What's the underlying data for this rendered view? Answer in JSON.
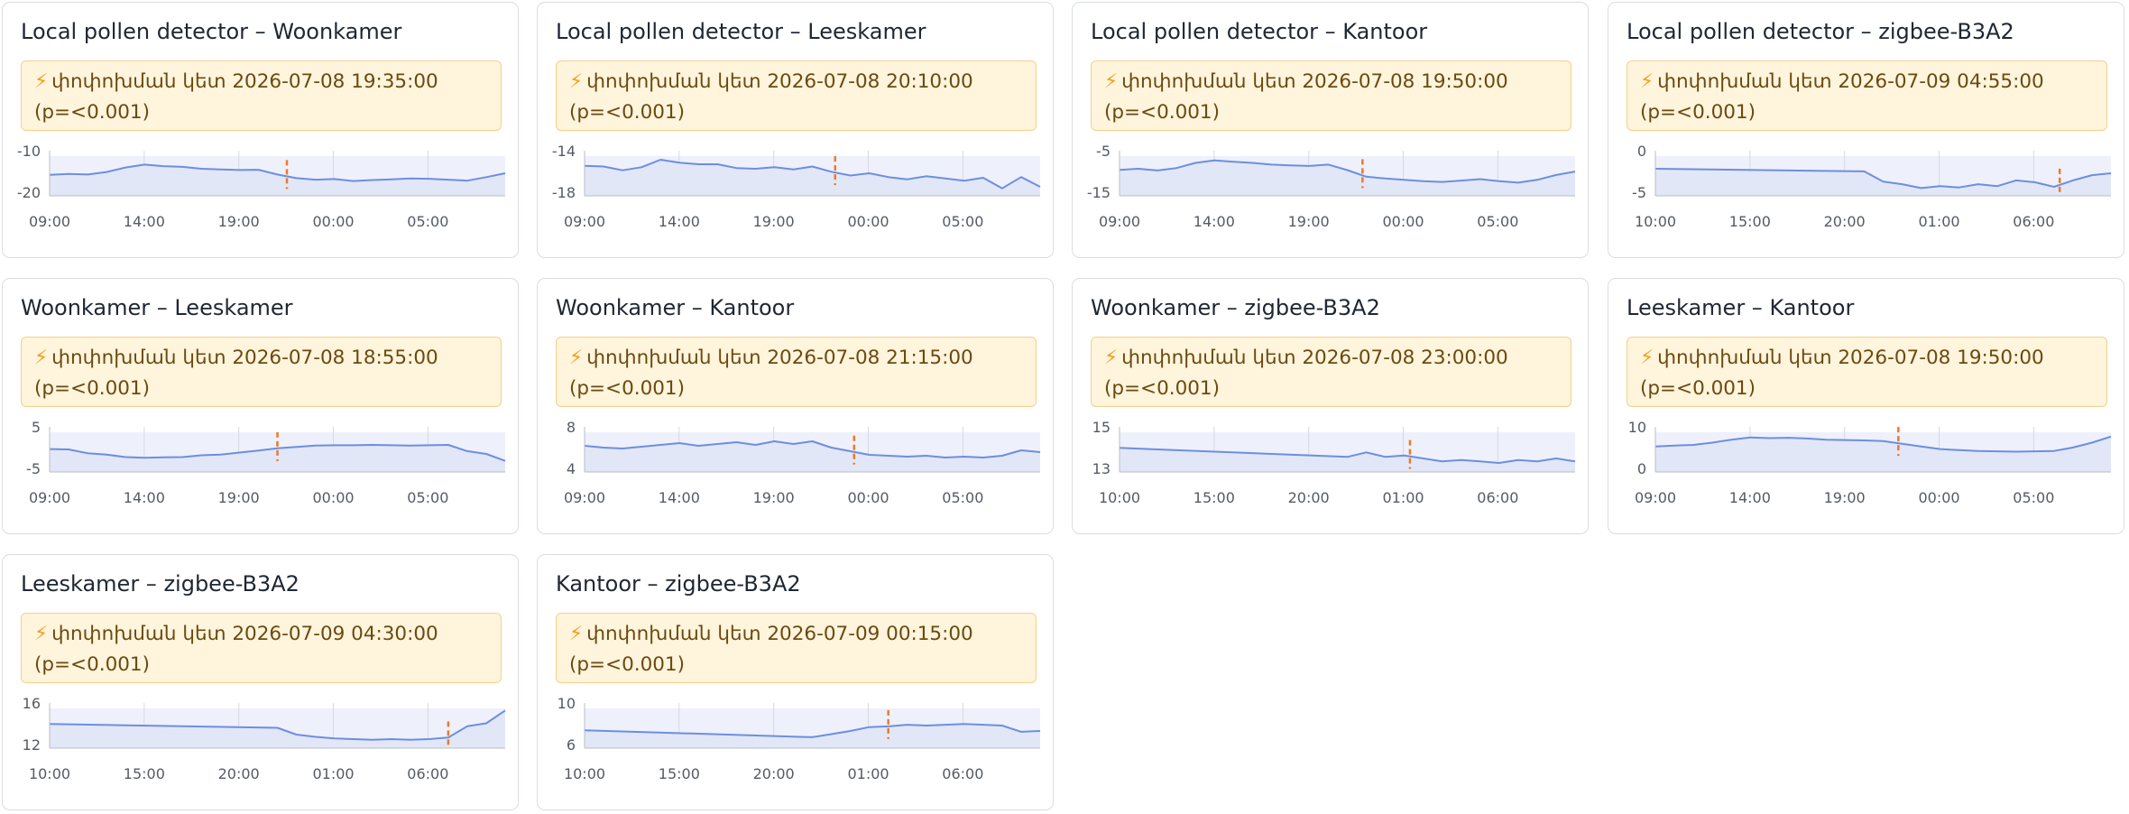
{
  "colors": {
    "line": "#6d8ee0",
    "fill": "#e2e7f8",
    "changepoint": "#f07828",
    "banner_bg": "#fff4dc",
    "banner_border": "#f5d08a",
    "grid": "#d6d9de"
  },
  "banner_icon": "lightning-icon",
  "cards": [
    {
      "title": "Local pollen detector – Woonkamer",
      "banner": {
        "label": "փոփոխման կետ",
        "time": "2026-07-08 19:35:00",
        "p": "(p=⁠<0.001)"
      },
      "chart_data": {
        "type": "area",
        "x_ticks": [
          "09:00",
          "14:00",
          "19:00",
          "00:00",
          "05:00"
        ],
        "y_ticks": [
          "-10",
          "-20"
        ],
        "ylim": [
          -22,
          -8
        ],
        "x": [
          0,
          1,
          2,
          3,
          4,
          5,
          6,
          7,
          8,
          9,
          10,
          11,
          12,
          13,
          14,
          15,
          16,
          17,
          18,
          19,
          20,
          21,
          22,
          23,
          24
        ],
        "values": [
          -15.5,
          -15.2,
          -15.4,
          -14.6,
          -13.2,
          -12.3,
          -12.8,
          -13.0,
          -13.6,
          -13.8,
          -14.0,
          -13.9,
          -15.4,
          -16.5,
          -17.0,
          -16.8,
          -17.4,
          -17.1,
          -16.9,
          -16.6,
          -16.7,
          -17.0,
          -17.3,
          -16.2,
          -15.0
        ],
        "changepoint_index": 12.5
      }
    },
    {
      "title": "Local pollen detector – Leeskamer",
      "banner": {
        "label": "փոփոխման կետ",
        "time": "2026-07-08 20:10:00",
        "p": "(p=⁠<0.001)"
      },
      "chart_data": {
        "type": "area",
        "x_ticks": [
          "09:00",
          "14:00",
          "19:00",
          "00:00",
          "05:00"
        ],
        "y_ticks": [
          "-14",
          "-18"
        ],
        "ylim": [
          -19,
          -13
        ],
        "x": [
          0,
          1,
          2,
          3,
          4,
          5,
          6,
          7,
          8,
          9,
          10,
          11,
          12,
          13,
          14,
          15,
          16,
          17,
          18,
          19,
          20,
          21,
          22,
          23,
          24
        ],
        "values": [
          -15.0,
          -15.1,
          -15.6,
          -15.2,
          -14.2,
          -14.6,
          -14.8,
          -14.8,
          -15.3,
          -15.4,
          -15.2,
          -15.5,
          -15.1,
          -15.8,
          -16.3,
          -16.0,
          -16.5,
          -16.8,
          -16.4,
          -16.7,
          -17.0,
          -16.6,
          -18.0,
          -16.5,
          -17.8
        ],
        "changepoint_index": 13.2
      }
    },
    {
      "title": "Local pollen detector – Kantoor",
      "banner": {
        "label": "փոփոխման կետ",
        "time": "2026-07-08 19:50:00",
        "p": "(p=⁠<0.001)"
      },
      "chart_data": {
        "type": "area",
        "x_ticks": [
          "09:00",
          "14:00",
          "19:00",
          "00:00",
          "05:00"
        ],
        "y_ticks": [
          "-5",
          "-15"
        ],
        "ylim": [
          -16,
          -3
        ],
        "x": [
          0,
          1,
          2,
          3,
          4,
          5,
          6,
          7,
          8,
          9,
          10,
          11,
          12,
          13,
          14,
          15,
          16,
          17,
          18,
          19,
          20,
          21,
          22,
          23,
          24
        ],
        "values": [
          -8.5,
          -8.2,
          -8.7,
          -8.0,
          -6.5,
          -5.8,
          -6.2,
          -6.5,
          -7.0,
          -7.2,
          -7.4,
          -7.0,
          -8.6,
          -10.5,
          -11.0,
          -11.4,
          -11.8,
          -12.0,
          -11.6,
          -11.2,
          -11.8,
          -12.2,
          -11.4,
          -10.0,
          -9.0
        ],
        "changepoint_index": 12.8
      }
    },
    {
      "title": "Local pollen detector – zigbee-B3A2",
      "banner": {
        "label": "փոփոխման կետ",
        "time": "2026-07-09 04:55:00",
        "p": "(p=⁠<0.001)"
      },
      "chart_data": {
        "type": "area",
        "x_ticks": [
          "10:00",
          "15:00",
          "20:00",
          "01:00",
          "06:00"
        ],
        "y_ticks": [
          "0",
          "-5"
        ],
        "ylim": [
          -6,
          1
        ],
        "x": [
          0,
          11,
          12,
          13,
          14,
          15,
          16,
          17,
          18,
          19,
          20,
          21,
          22,
          23,
          24
        ],
        "values": [
          -1.8,
          -2.2,
          -3.8,
          -4.2,
          -4.8,
          -4.5,
          -4.7,
          -4.2,
          -4.5,
          -3.6,
          -3.9,
          -4.6,
          -3.6,
          -2.8,
          -2.5
        ],
        "changepoint_index": 21.3
      }
    },
    {
      "title": "Woonkamer – Leeskamer",
      "banner": {
        "label": "փոփոխման կետ",
        "time": "2026-07-08 18:55:00",
        "p": "(p=⁠<0.001)"
      },
      "chart_data": {
        "type": "area",
        "x_ticks": [
          "09:00",
          "14:00",
          "19:00",
          "00:00",
          "05:00"
        ],
        "y_ticks": [
          "5",
          "-5"
        ],
        "ylim": [
          -6,
          7
        ],
        "x": [
          0,
          1,
          2,
          3,
          4,
          5,
          6,
          7,
          8,
          9,
          10,
          11,
          12,
          13,
          14,
          15,
          16,
          17,
          18,
          19,
          20,
          21,
          22,
          23,
          24
        ],
        "values": [
          0.6,
          0.5,
          -0.6,
          -1.0,
          -1.7,
          -1.9,
          -1.8,
          -1.7,
          -1.2,
          -1.0,
          -0.4,
          0.2,
          0.8,
          1.2,
          1.6,
          1.7,
          1.7,
          1.8,
          1.7,
          1.6,
          1.7,
          1.8,
          0.0,
          -0.8,
          -2.8
        ],
        "changepoint_index": 12.0
      }
    },
    {
      "title": "Woonkamer – Kantoor",
      "banner": {
        "label": "փոփոխման կետ",
        "time": "2026-07-08 21:15:00",
        "p": "(p=⁠<0.001)"
      },
      "chart_data": {
        "type": "area",
        "x_ticks": [
          "09:00",
          "14:00",
          "19:00",
          "00:00",
          "05:00"
        ],
        "y_ticks": [
          "8",
          "4"
        ],
        "ylim": [
          3.5,
          8.5
        ],
        "x": [
          0,
          1,
          2,
          3,
          4,
          5,
          6,
          7,
          8,
          9,
          10,
          11,
          12,
          13,
          14,
          15,
          16,
          17,
          18,
          19,
          20,
          21,
          22,
          23,
          24
        ],
        "values": [
          6.4,
          6.2,
          6.1,
          6.3,
          6.5,
          6.7,
          6.4,
          6.6,
          6.8,
          6.5,
          6.9,
          6.6,
          6.9,
          6.2,
          5.8,
          5.4,
          5.3,
          5.2,
          5.3,
          5.1,
          5.2,
          5.1,
          5.3,
          5.9,
          5.7
        ],
        "changepoint_index": 14.2
      }
    },
    {
      "title": "Woonkamer – zigbee-B3A2",
      "banner": {
        "label": "փոփոխման կետ",
        "time": "2026-07-08 23:00:00",
        "p": "(p=⁠<0.001)"
      },
      "chart_data": {
        "type": "area",
        "x_ticks": [
          "10:00",
          "15:00",
          "20:00",
          "01:00",
          "06:00"
        ],
        "y_ticks": [
          "15",
          "13"
        ],
        "ylim": [
          12.6,
          15.6
        ],
        "x": [
          0,
          12,
          13,
          14,
          15,
          16,
          17,
          18,
          19,
          20,
          21,
          22,
          23,
          24
        ],
        "values": [
          14.2,
          13.6,
          13.9,
          13.6,
          13.7,
          13.5,
          13.3,
          13.4,
          13.3,
          13.2,
          13.4,
          13.3,
          13.5,
          13.3
        ],
        "changepoint_index": 15.3
      }
    },
    {
      "title": "Leeskamer – Kantoor",
      "banner": {
        "label": "փոփոխման կետ",
        "time": "2026-07-08 19:50:00",
        "p": "(p=⁠<0.001)"
      },
      "chart_data": {
        "type": "area",
        "x_ticks": [
          "09:00",
          "14:00",
          "19:00",
          "00:00",
          "05:00"
        ],
        "y_ticks": [
          "10",
          "0"
        ],
        "ylim": [
          -1,
          11
        ],
        "x": [
          0,
          1,
          2,
          3,
          4,
          5,
          6,
          7,
          8,
          9,
          10,
          11,
          12,
          13,
          14,
          15,
          16,
          17,
          18,
          19,
          20,
          21,
          22,
          23,
          24
        ],
        "values": [
          5.8,
          6.0,
          6.2,
          6.8,
          7.6,
          8.2,
          8.0,
          8.1,
          7.9,
          7.6,
          7.5,
          7.4,
          7.2,
          6.5,
          5.8,
          5.1,
          4.8,
          4.6,
          4.5,
          4.4,
          4.5,
          4.6,
          5.5,
          6.8,
          8.4
        ],
        "changepoint_index": 12.8
      }
    },
    {
      "title": "Leeskamer – zigbee-B3A2",
      "banner": {
        "label": "փոփոխման կետ",
        "time": "2026-07-09 04:30:00",
        "p": "(p=⁠<0.001)"
      },
      "chart_data": {
        "type": "area",
        "x_ticks": [
          "10:00",
          "15:00",
          "20:00",
          "01:00",
          "06:00"
        ],
        "y_ticks": [
          "16",
          "12"
        ],
        "ylim": [
          11,
          17
        ],
        "x": [
          0,
          12,
          13,
          14,
          15,
          16,
          17,
          18,
          19,
          20,
          21,
          22,
          23,
          24
        ],
        "values": [
          14.2,
          13.7,
          12.8,
          12.5,
          12.3,
          12.2,
          12.1,
          12.2,
          12.1,
          12.2,
          12.4,
          13.9,
          14.3,
          16.0
        ],
        "changepoint_index": 21.0
      }
    },
    {
      "title": "Kantoor – zigbee-B3A2",
      "banner": {
        "label": "փոփոխման կետ",
        "time": "2026-07-09 00:15:00",
        "p": "(p=⁠<0.001)"
      },
      "chart_data": {
        "type": "area",
        "x_ticks": [
          "10:00",
          "15:00",
          "20:00",
          "01:00",
          "06:00"
        ],
        "y_ticks": [
          "10",
          "6"
        ],
        "ylim": [
          5.2,
          11
        ],
        "x": [
          0,
          12,
          13,
          14,
          15,
          16,
          17,
          18,
          19,
          20,
          21,
          22,
          23,
          24
        ],
        "values": [
          7.5,
          6.6,
          7.0,
          7.4,
          7.9,
          8.0,
          8.2,
          8.1,
          8.2,
          8.3,
          8.2,
          8.1,
          7.3,
          7.4
        ],
        "changepoint_index": 16.0
      }
    }
  ]
}
